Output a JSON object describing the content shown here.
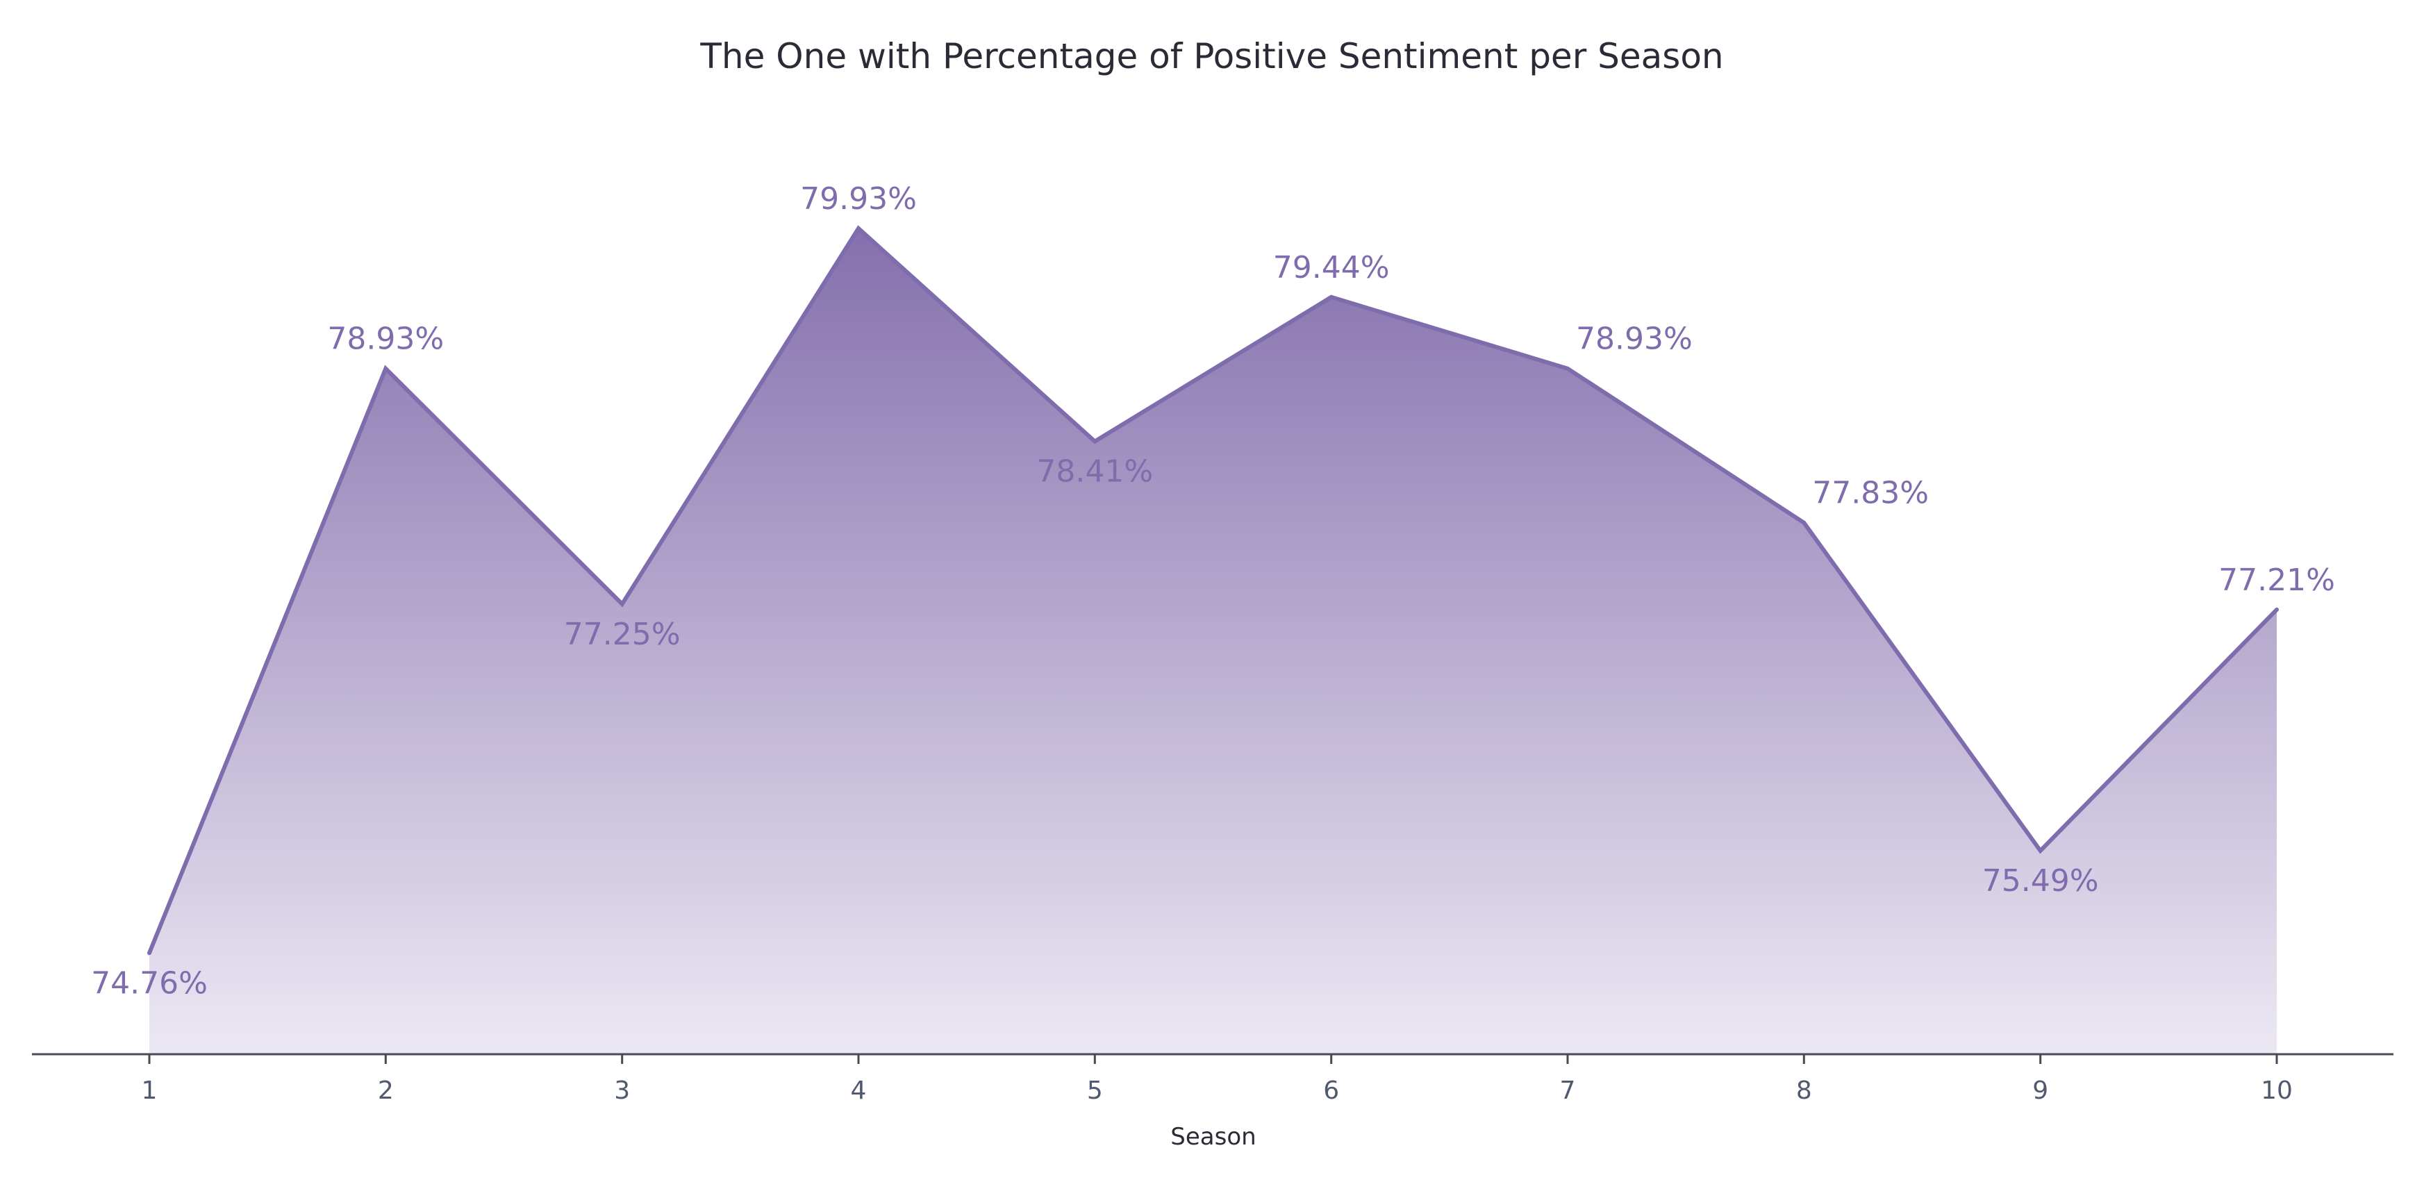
{
  "chart_data": {
    "type": "area",
    "title": "The One with Percentage of Positive Sentiment per Season",
    "xlabel": "Season",
    "ylabel": "",
    "x": [
      1,
      2,
      3,
      4,
      5,
      6,
      7,
      8,
      9,
      10
    ],
    "tick_labels": [
      "1",
      "2",
      "3",
      "4",
      "5",
      "6",
      "7",
      "8",
      "9",
      "10"
    ],
    "values": [
      74.76,
      78.93,
      77.25,
      79.93,
      78.41,
      79.44,
      78.93,
      77.83,
      75.49,
      77.21
    ],
    "data_labels": [
      "74.76%",
      "78.93%",
      "77.25%",
      "79.93%",
      "78.41%",
      "79.44%",
      "78.93%",
      "77.83%",
      "75.49%",
      "77.21%"
    ],
    "label_placement": [
      "below",
      "above",
      "below",
      "above",
      "below",
      "above",
      "above-right",
      "above-right",
      "below",
      "above"
    ],
    "ylim": [
      74.4,
      80.4
    ],
    "grid": false,
    "y_axis_visible": false,
    "colors": {
      "line": "#7e6cad",
      "fill_top": "#8470ad",
      "fill_bottom": "#ece8f3",
      "axis": "#4a4a55"
    }
  }
}
